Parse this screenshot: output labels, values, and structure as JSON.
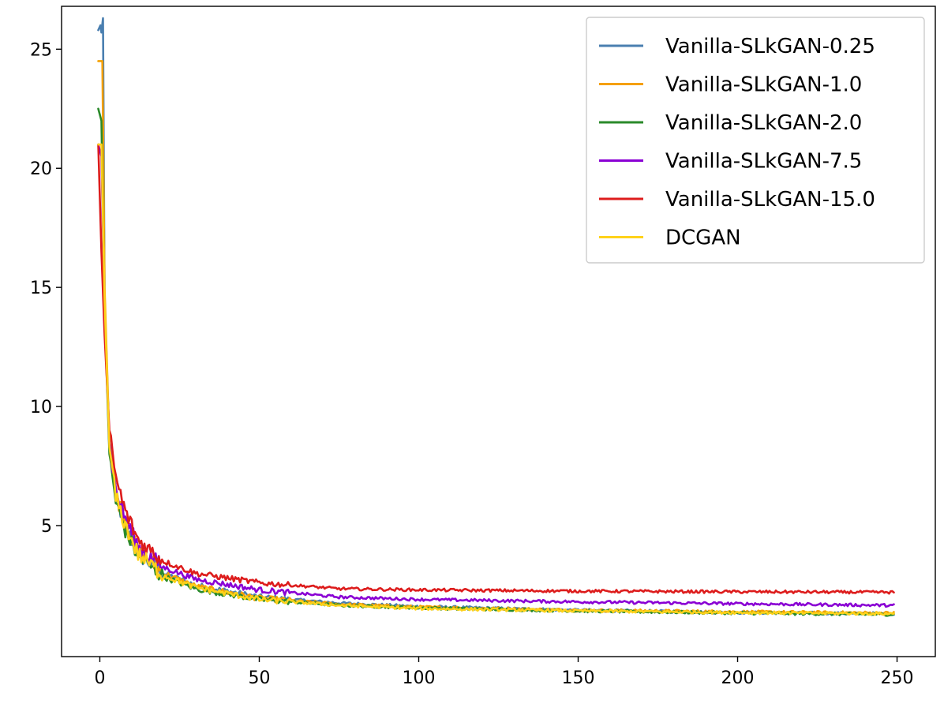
{
  "chart_data": {
    "type": "line",
    "title": "",
    "xlabel": "",
    "ylabel": "",
    "xlim": [
      -12,
      262
    ],
    "ylim": [
      -0.5,
      26.8
    ],
    "xticks": [
      0,
      50,
      100,
      150,
      200,
      250
    ],
    "yticks": [
      5,
      10,
      15,
      20,
      25
    ],
    "grid": false,
    "legend_position": "top-right",
    "series": [
      {
        "name": "Vanilla-SLkGAN-0.25",
        "color": "#4a7fb0",
        "points": [
          [
            -0.5,
            25.8
          ],
          [
            0.2,
            26.0
          ],
          [
            0.5,
            25.7
          ],
          [
            1,
            26.3
          ],
          [
            1.5,
            14.5
          ],
          [
            3,
            8.5
          ],
          [
            5,
            6.2
          ],
          [
            8,
            5.0
          ],
          [
            12,
            3.8
          ],
          [
            20,
            3.0
          ],
          [
            30,
            2.5
          ],
          [
            50,
            2.0
          ],
          [
            75,
            1.75
          ],
          [
            100,
            1.6
          ],
          [
            150,
            1.45
          ],
          [
            200,
            1.35
          ],
          [
            249,
            1.3
          ]
        ]
      },
      {
        "name": "Vanilla-SLkGAN-1.0",
        "color": "#f5a000",
        "points": [
          [
            -0.5,
            24.5
          ],
          [
            0.8,
            24.5
          ],
          [
            1.5,
            15
          ],
          [
            3,
            8.5
          ],
          [
            5,
            6.4
          ],
          [
            8,
            5.1
          ],
          [
            12,
            3.9
          ],
          [
            20,
            3.0
          ],
          [
            30,
            2.45
          ],
          [
            50,
            1.95
          ],
          [
            75,
            1.7
          ],
          [
            100,
            1.58
          ],
          [
            150,
            1.45
          ],
          [
            200,
            1.38
          ],
          [
            249,
            1.33
          ]
        ]
      },
      {
        "name": "Vanilla-SLkGAN-2.0",
        "color": "#2a8a2a",
        "points": [
          [
            -0.5,
            22.5
          ],
          [
            0.5,
            22.0
          ],
          [
            1.5,
            14
          ],
          [
            3,
            8.0
          ],
          [
            5,
            6.0
          ],
          [
            8,
            4.8
          ],
          [
            12,
            3.7
          ],
          [
            20,
            2.85
          ],
          [
            30,
            2.35
          ],
          [
            50,
            1.9
          ],
          [
            75,
            1.65
          ],
          [
            100,
            1.55
          ],
          [
            150,
            1.42
          ],
          [
            200,
            1.33
          ],
          [
            249,
            1.27
          ]
        ]
      },
      {
        "name": "Vanilla-SLkGAN-7.5",
        "color": "#8a00d4",
        "points": [
          [
            -0.5,
            21.0
          ],
          [
            0.5,
            20.5
          ],
          [
            1.5,
            14
          ],
          [
            3,
            8.5
          ],
          [
            5,
            6.5
          ],
          [
            8,
            5.3
          ],
          [
            12,
            4.1
          ],
          [
            20,
            3.25
          ],
          [
            30,
            2.75
          ],
          [
            50,
            2.3
          ],
          [
            75,
            2.0
          ],
          [
            100,
            1.9
          ],
          [
            150,
            1.8
          ],
          [
            200,
            1.72
          ],
          [
            249,
            1.65
          ]
        ]
      },
      {
        "name": "Vanilla-SLkGAN-15.0",
        "color": "#dd1c1c",
        "points": [
          [
            -0.5,
            21.0
          ],
          [
            0.5,
            16.5
          ],
          [
            1.5,
            13
          ],
          [
            3,
            9.0
          ],
          [
            5,
            7.0
          ],
          [
            8,
            5.6
          ],
          [
            12,
            4.4
          ],
          [
            20,
            3.5
          ],
          [
            30,
            3.0
          ],
          [
            50,
            2.6
          ],
          [
            75,
            2.35
          ],
          [
            100,
            2.3
          ],
          [
            150,
            2.25
          ],
          [
            200,
            2.22
          ],
          [
            249,
            2.2
          ]
        ]
      },
      {
        "name": "DCGAN",
        "color": "#ffd21a",
        "points": [
          [
            -0.5,
            21.0
          ],
          [
            0.5,
            21.0
          ],
          [
            1.5,
            14.5
          ],
          [
            3,
            8.3
          ],
          [
            5,
            6.2
          ],
          [
            8,
            5.0
          ],
          [
            12,
            3.8
          ],
          [
            20,
            2.9
          ],
          [
            30,
            2.4
          ],
          [
            50,
            1.9
          ],
          [
            75,
            1.65
          ],
          [
            100,
            1.52
          ],
          [
            150,
            1.42
          ],
          [
            200,
            1.35
          ],
          [
            249,
            1.3
          ]
        ]
      }
    ]
  }
}
